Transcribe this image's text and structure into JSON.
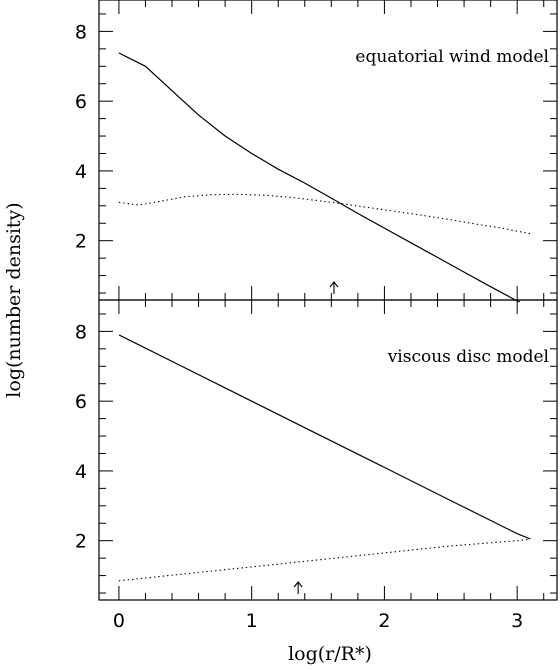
{
  "figure": {
    "xlabel": "log(r/R*)",
    "ylabel": "log(number density)"
  },
  "chart_data": [
    {
      "type": "line",
      "annotation": "equatorial wind model",
      "xlim": [
        -0.15,
        3.3
      ],
      "ylim": [
        0.3,
        8.9
      ],
      "xticks": [
        "",
        "",
        "",
        ""
      ],
      "yticks": [
        "2",
        "4",
        "6",
        "8"
      ],
      "grid": false,
      "marker_x": 1.62,
      "series": [
        {
          "style": "solid",
          "x": [
            0.0,
            0.2,
            0.4,
            0.6,
            0.8,
            1.0,
            1.2,
            1.4,
            1.6,
            1.8,
            2.0,
            2.2,
            2.4,
            2.6,
            2.8,
            3.0,
            3.02
          ],
          "y": [
            7.38,
            7.0,
            6.3,
            5.6,
            5.0,
            4.5,
            4.05,
            3.65,
            3.22,
            2.78,
            2.36,
            1.94,
            1.52,
            1.1,
            0.68,
            0.27,
            0.25
          ]
        },
        {
          "style": "dotted",
          "x": [
            0.0,
            0.15,
            0.3,
            0.5,
            0.7,
            0.9,
            1.1,
            1.3,
            1.5,
            1.7,
            1.9,
            2.1,
            2.3,
            2.5,
            2.7,
            2.9,
            3.1
          ],
          "y": [
            3.1,
            3.02,
            3.12,
            3.26,
            3.32,
            3.33,
            3.3,
            3.24,
            3.15,
            3.05,
            2.94,
            2.83,
            2.72,
            2.6,
            2.47,
            2.35,
            2.2
          ]
        }
      ]
    },
    {
      "type": "line",
      "annotation": "viscous disc model",
      "xlim": [
        -0.15,
        3.3
      ],
      "ylim": [
        0.3,
        8.9
      ],
      "xticks": [
        "0",
        "1",
        "2",
        "3"
      ],
      "yticks": [
        "2",
        "4",
        "6",
        "8"
      ],
      "grid": false,
      "marker_x": 1.35,
      "series": [
        {
          "style": "solid",
          "x": [
            0.0,
            0.5,
            1.0,
            1.5,
            2.0,
            2.5,
            3.0,
            3.1
          ],
          "y": [
            7.9,
            6.95,
            6.0,
            5.05,
            4.1,
            3.15,
            2.2,
            2.05
          ]
        },
        {
          "style": "dotted",
          "x": [
            0.0,
            0.5,
            1.0,
            1.5,
            2.0,
            2.5,
            3.0,
            3.1
          ],
          "y": [
            0.85,
            1.05,
            1.25,
            1.45,
            1.65,
            1.85,
            2.0,
            2.05
          ]
        }
      ]
    }
  ]
}
